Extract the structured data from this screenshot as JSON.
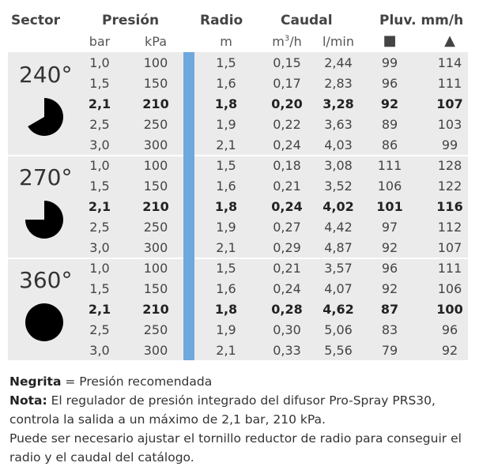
{
  "header": {
    "sector": "Sector",
    "presion": "Presión",
    "radio": "Radio",
    "caudal": "Caudal",
    "pluv": "Pluv. mm/h"
  },
  "units": {
    "bar": "bar",
    "kpa": "kPa",
    "m": "m",
    "m3h_base": "m",
    "m3h_sup": "3",
    "m3h_tail": "/h",
    "lmin": "l/min",
    "square_symbol": "■",
    "triangle_symbol": "▲"
  },
  "sectors": [
    {
      "label": "240°",
      "icon": "pie-240-icon",
      "rows": [
        {
          "bar": "1,0",
          "kpa": "100",
          "radio": "1,5",
          "m3h": "0,15",
          "lmin": "2,44",
          "sq": "99",
          "tri": "114",
          "bold": false
        },
        {
          "bar": "1,5",
          "kpa": "150",
          "radio": "1,6",
          "m3h": "0,17",
          "lmin": "2,83",
          "sq": "96",
          "tri": "111",
          "bold": false
        },
        {
          "bar": "2,1",
          "kpa": "210",
          "radio": "1,8",
          "m3h": "0,20",
          "lmin": "3,28",
          "sq": "92",
          "tri": "107",
          "bold": true
        },
        {
          "bar": "2,5",
          "kpa": "250",
          "radio": "1,9",
          "m3h": "0,22",
          "lmin": "3,63",
          "sq": "89",
          "tri": "103",
          "bold": false
        },
        {
          "bar": "3,0",
          "kpa": "300",
          "radio": "2,1",
          "m3h": "0,24",
          "lmin": "4,03",
          "sq": "86",
          "tri": "99",
          "bold": false
        }
      ]
    },
    {
      "label": "270°",
      "icon": "pie-270-icon",
      "rows": [
        {
          "bar": "1,0",
          "kpa": "100",
          "radio": "1,5",
          "m3h": "0,18",
          "lmin": "3,08",
          "sq": "111",
          "tri": "128",
          "bold": false
        },
        {
          "bar": "1,5",
          "kpa": "150",
          "radio": "1,6",
          "m3h": "0,21",
          "lmin": "3,52",
          "sq": "106",
          "tri": "122",
          "bold": false
        },
        {
          "bar": "2,1",
          "kpa": "210",
          "radio": "1,8",
          "m3h": "0,24",
          "lmin": "4,02",
          "sq": "101",
          "tri": "116",
          "bold": true
        },
        {
          "bar": "2,5",
          "kpa": "250",
          "radio": "1,9",
          "m3h": "0,27",
          "lmin": "4,42",
          "sq": "97",
          "tri": "112",
          "bold": false
        },
        {
          "bar": "3,0",
          "kpa": "300",
          "radio": "2,1",
          "m3h": "0,29",
          "lmin": "4,87",
          "sq": "92",
          "tri": "107",
          "bold": false
        }
      ]
    },
    {
      "label": "360°",
      "icon": "pie-360-icon",
      "rows": [
        {
          "bar": "1,0",
          "kpa": "100",
          "radio": "1,5",
          "m3h": "0,21",
          "lmin": "3,57",
          "sq": "96",
          "tri": "111",
          "bold": false
        },
        {
          "bar": "1,5",
          "kpa": "150",
          "radio": "1,6",
          "m3h": "0,24",
          "lmin": "4,07",
          "sq": "92",
          "tri": "106",
          "bold": false
        },
        {
          "bar": "2,1",
          "kpa": "210",
          "radio": "1,8",
          "m3h": "0,28",
          "lmin": "4,62",
          "sq": "87",
          "tri": "100",
          "bold": true
        },
        {
          "bar": "2,5",
          "kpa": "250",
          "radio": "1,9",
          "m3h": "0,30",
          "lmin": "5,06",
          "sq": "83",
          "tri": "96",
          "bold": false
        },
        {
          "bar": "3,0",
          "kpa": "300",
          "radio": "2,1",
          "m3h": "0,33",
          "lmin": "5,56",
          "sq": "79",
          "tri": "92",
          "bold": false
        }
      ]
    }
  ],
  "notes": {
    "negrita_label": "Negrita",
    "negrita_text": " = Presión recomendada",
    "nota_label": "Nota:",
    "nota_text": " El regulador de presión integrado del difusor Pro-Spray PRS30, controla la salida a un máximo de 2,1 bar, 210 kPa.",
    "extra_text": "Puede ser necesario ajustar el tornillo reductor de radio para conseguir el radio y el caudal del catálogo."
  },
  "colors": {
    "table_bg": "#ebebeb",
    "accent_bar": "#6fa8dc",
    "pie_fill": "#000000"
  }
}
